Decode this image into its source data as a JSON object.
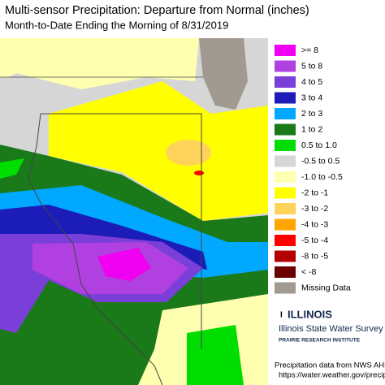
{
  "header": {
    "title": "Multi-sensor Precipitation: Departure from Normal (inches)",
    "subtitle": "Month-to-Date Ending the Morning of 8/31/2019"
  },
  "legend": {
    "items": [
      {
        "label": ">= 8",
        "color": "#f000f0"
      },
      {
        "label": "5 to 8",
        "color": "#b040e0"
      },
      {
        "label": "4 to 5",
        "color": "#7a3fd8"
      },
      {
        "label": "3 to 4",
        "color": "#1c1cb8"
      },
      {
        "label": "2 to 3",
        "color": "#00a8ff"
      },
      {
        "label": "1 to 2",
        "color": "#1a7a1a"
      },
      {
        "label": "0.5 to 1.0",
        "color": "#00dd00"
      },
      {
        "label": "-0.5 to 0.5",
        "color": "#d6d6d6"
      },
      {
        "label": "-1.0 to -0.5",
        "color": "#ffffb0"
      },
      {
        "label": "-2 to -1",
        "color": "#ffff00"
      },
      {
        "label": "-3 to -2",
        "color": "#ffd35a"
      },
      {
        "label": "-4 to -3",
        "color": "#ffa500"
      },
      {
        "label": "-5 to -4",
        "color": "#ff0000"
      },
      {
        "label": "-8 to -5",
        "color": "#b30000"
      },
      {
        "label": "< -8",
        "color": "#6b0000"
      },
      {
        "label": "Missing Data",
        "color": "#a09a90"
      }
    ]
  },
  "logo": {
    "name": "ILLINOIS",
    "org": "Illinois State Water Survey",
    "institute": "PRAIRIE RESEARCH INSTITUTE"
  },
  "footer": {
    "source": "Precipitation data from NWS AHPS:",
    "url": "https://water.weather.gov/precip"
  }
}
